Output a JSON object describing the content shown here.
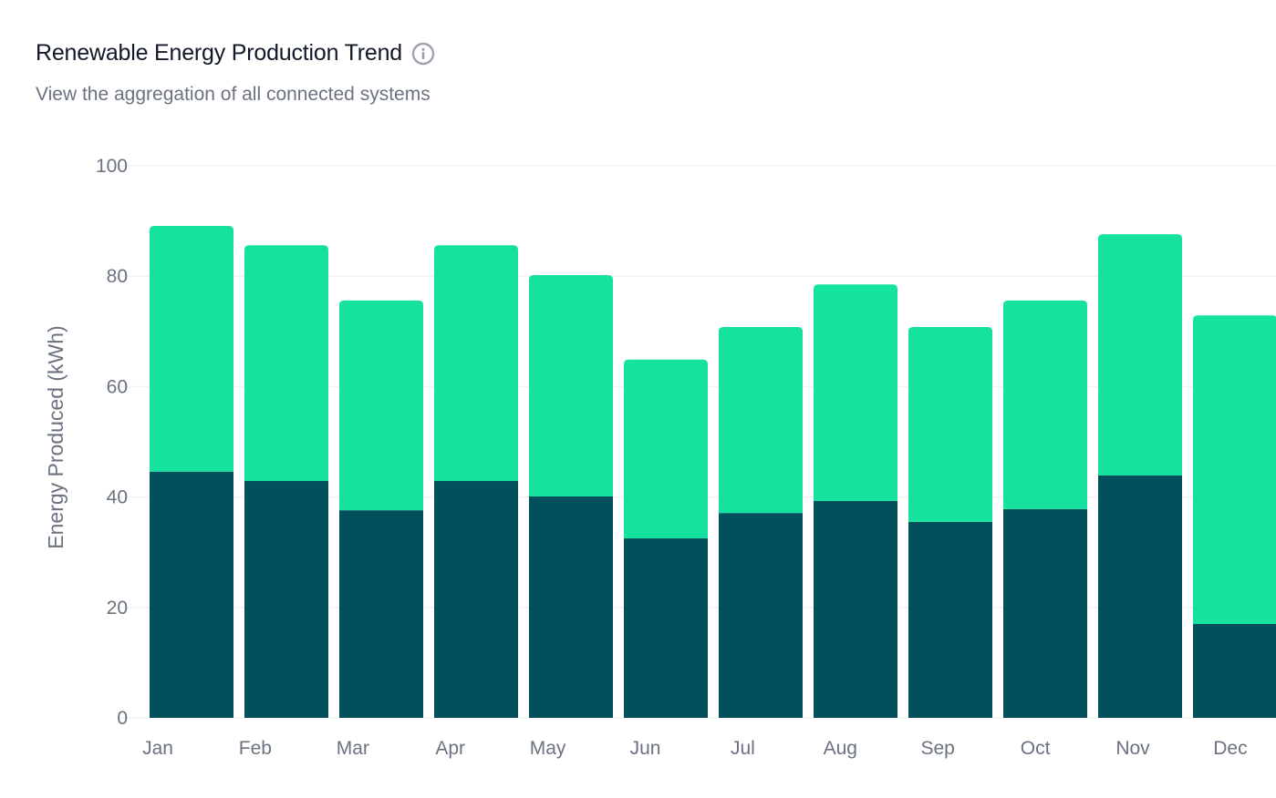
{
  "header": {
    "title": "Renewable Energy Production Trend",
    "subtitle": "View the aggregation of all connected systems",
    "info_icon": "info-circle-icon"
  },
  "chart_data": {
    "type": "bar",
    "stacked": true,
    "title": "Renewable Energy Production Trend",
    "subtitle": "View the aggregation of all connected systems",
    "xlabel": "",
    "ylabel": "Energy Produced (kWh)",
    "ylim": [
      0,
      100
    ],
    "yticks": [
      "0",
      "20",
      "40",
      "60",
      "80",
      "100"
    ],
    "grid": true,
    "legend": "none",
    "categories": [
      "Jan",
      "Feb",
      "Mar",
      "Apr",
      "May",
      "Jun",
      "Jul",
      "Aug",
      "Sep",
      "Oct",
      "Nov",
      "Dec"
    ],
    "series": [
      {
        "color": "#01505c",
        "values": [
          44.6,
          42.9,
          37.6,
          42.9,
          40.1,
          32.5,
          37.1,
          39.3,
          35.5,
          37.8,
          43.9,
          17.0
        ]
      },
      {
        "color": "#15e29f",
        "values": [
          44.5,
          42.7,
          38.0,
          42.7,
          40.1,
          32.4,
          33.7,
          39.2,
          35.3,
          37.8,
          43.7,
          55.9
        ]
      }
    ]
  }
}
